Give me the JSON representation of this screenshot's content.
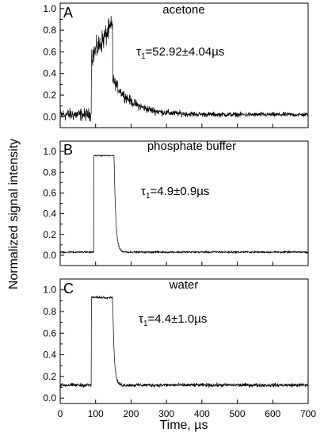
{
  "figure": {
    "ylabel": "Normalized signal intensity",
    "xlabel": "Time, µs",
    "xlim": [
      0,
      700
    ],
    "x_ticks": [
      0,
      100,
      200,
      300,
      400,
      500,
      600,
      700
    ],
    "x_tick_labels": [
      "0",
      "100",
      "200",
      "300",
      "400",
      "500",
      "600",
      "700"
    ]
  },
  "chart_data": [
    {
      "type": "line",
      "panel": "A",
      "title": "acetone",
      "annotation": {
        "prefix": "τ",
        "subscript": "1",
        "text": "=52.92±4.04µs"
      },
      "xlim": [
        0,
        700
      ],
      "ylim": [
        -0.1,
        1.05
      ],
      "y_ticks": [
        0.0,
        0.2,
        0.4,
        0.6,
        0.8,
        1.0
      ],
      "y_tick_labels": [
        "0.0",
        "0.2",
        "0.4",
        "0.6",
        "0.8",
        "1.0"
      ],
      "baseline": 0.02,
      "pulse_start": 88,
      "pulse_end": 148,
      "pulse_start_level": 0.55,
      "pulse_end_level": 0.85,
      "decay_start": 0.35,
      "decay_tau": 52.92,
      "noise": 0.05,
      "series": [
        {
          "values": "acetone luminescence trace"
        }
      ]
    },
    {
      "type": "line",
      "panel": "B",
      "title": "phosphate buffer",
      "annotation": {
        "prefix": "τ",
        "subscript": "1",
        "text": "=4.9±0.9µs"
      },
      "xlim": [
        0,
        700
      ],
      "ylim": [
        -0.1,
        1.1
      ],
      "y_ticks": [
        0.0,
        0.2,
        0.4,
        0.6,
        0.8,
        1.0
      ],
      "y_tick_labels": [
        "0.0",
        "0.2",
        "0.4",
        "0.6",
        "0.8",
        "1.0"
      ],
      "baseline": 0.03,
      "pulse_start": 95,
      "pulse_end": 152,
      "pulse_start_level": 0.96,
      "pulse_end_level": 0.96,
      "decay_start": 0.96,
      "decay_tau": 4.9,
      "noise": 0.008
    },
    {
      "type": "line",
      "panel": "C",
      "title": "water",
      "annotation": {
        "prefix": "τ",
        "subscript": "1",
        "text": "=4.4±1.0µs"
      },
      "xlim": [
        0,
        700
      ],
      "ylim": [
        -0.05,
        1.1
      ],
      "y_ticks": [
        0.0,
        0.2,
        0.4,
        0.6,
        0.8,
        1.0
      ],
      "y_tick_labels": [
        "0.0",
        "0.2",
        "0.4",
        "0.6",
        "0.8",
        "1.0"
      ],
      "baseline": 0.12,
      "pulse_start": 88,
      "pulse_end": 148,
      "pulse_start_level": 0.93,
      "pulse_end_level": 0.93,
      "decay_start": 0.93,
      "decay_tau": 4.4,
      "noise": 0.015
    }
  ]
}
